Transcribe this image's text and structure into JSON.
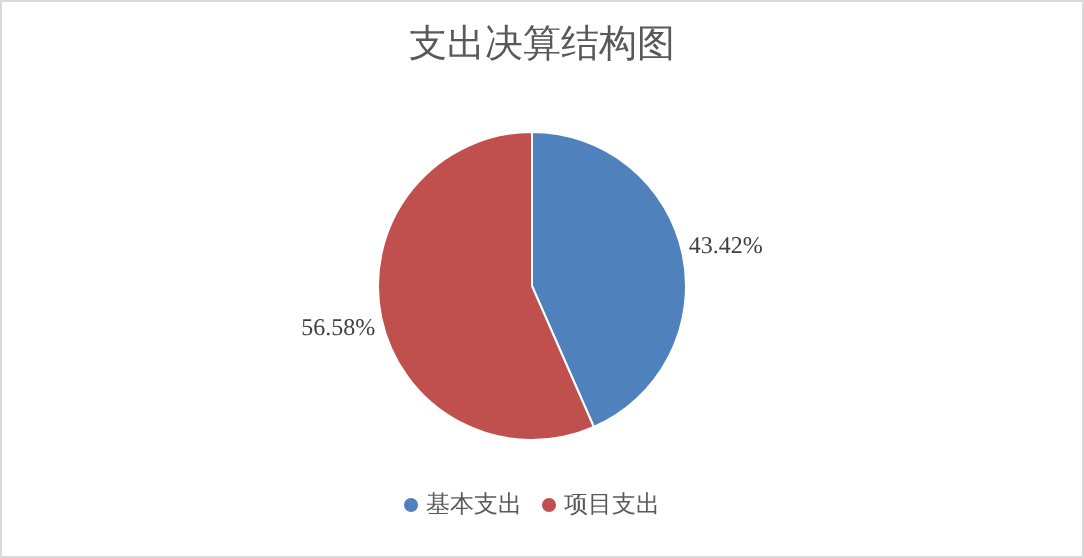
{
  "chart_data": {
    "type": "pie",
    "title": "支出决算结构图",
    "categories": [
      "基本支出",
      "项目支出"
    ],
    "values": [
      43.42,
      56.58
    ],
    "colors": [
      "#4f81bd",
      "#c0504d"
    ],
    "value_labels": [
      "43.42%",
      "56.58%"
    ],
    "legend": "bottom"
  }
}
